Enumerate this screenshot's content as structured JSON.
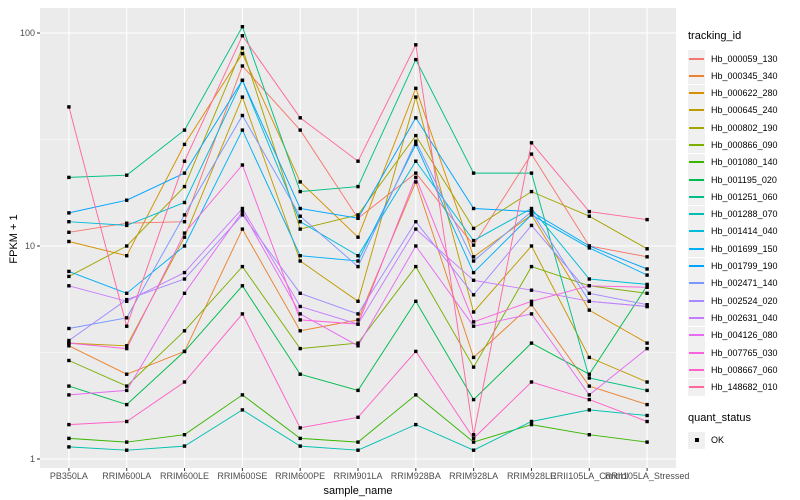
{
  "chart_data": {
    "type": "line",
    "title": "",
    "xlabel": "sample_name",
    "ylabel": "FPKM + 1",
    "y_scale": "log10",
    "y_ticks": [
      100,
      10,
      1
    ],
    "y_minor_gridlines": [
      31.62,
      3.162
    ],
    "ylim": [
      0.9,
      131
    ],
    "grid": "on",
    "legend_position": "right",
    "legend_title": "tracking_id",
    "marker": "filled-black-square",
    "colors": {
      "panel_bg": "#EBEBEB",
      "grid": "#FFFFFF",
      "tick_label": "#4D4D4D",
      "tick_mark": "#333333",
      "axis_title": "#000000",
      "point": "#000000",
      "legend_key_bg": "#F0F0F0"
    },
    "categories": [
      "PB350LA",
      "RRIM600LA",
      "RRIM600LE",
      "RRIM600SE",
      "RRIM600PE",
      "RRIM901LA",
      "RRIM928BA",
      "RRIM928LA",
      "RRIM928LE",
      "RRII105LA_Control",
      "RRII105LA_Stressed"
    ],
    "series": [
      {
        "name": "Hb_000059_130",
        "color": "#F8766D",
        "values": [
          11.6,
          12.8,
          13,
          70,
          35,
          13.5,
          22,
          10.1,
          27,
          10,
          8.9
        ]
      },
      {
        "name": "Hb_000345_340",
        "color": "#EA8331",
        "values": [
          3.4,
          2.5,
          3.2,
          12,
          4,
          4.5,
          20,
          3.0,
          5.3,
          2.2,
          1.8
        ]
      },
      {
        "name": "Hb_000622_280",
        "color": "#D89000",
        "values": [
          10.5,
          9,
          30,
          80,
          20,
          11,
          55,
          8.9,
          14,
          5,
          3.5
        ]
      },
      {
        "name": "Hb_000645_240",
        "color": "#C09B00",
        "values": [
          3.5,
          3.4,
          11,
          50,
          8.5,
          5.5,
          50,
          4.9,
          10,
          3,
          2.3
        ]
      },
      {
        "name": "Hb_000802_190",
        "color": "#A3A500",
        "values": [
          7.2,
          10,
          19,
          85,
          12,
          14,
          33,
          12.1,
          18,
          13.8,
          9.7
        ]
      },
      {
        "name": "Hb_000866_090",
        "color": "#7CAE00",
        "values": [
          2.9,
          2.2,
          4,
          8,
          3.3,
          3.5,
          8,
          2.7,
          8,
          6.5,
          6
        ]
      },
      {
        "name": "Hb_001080_140",
        "color": "#39B600",
        "values": [
          1.25,
          1.2,
          1.3,
          2,
          1.25,
          1.2,
          2,
          1.2,
          1.45,
          1.3,
          1.2
        ]
      },
      {
        "name": "Hb_001195_020",
        "color": "#00BB4E",
        "values": [
          2.2,
          1.8,
          3.2,
          6.5,
          2.5,
          2.1,
          5.5,
          1.9,
          3.5,
          2.5,
          6.5
        ]
      },
      {
        "name": "Hb_001251_060",
        "color": "#00C087",
        "values": [
          21,
          21.5,
          35,
          107,
          18,
          19,
          75,
          22,
          22,
          2.4,
          2.1
        ]
      },
      {
        "name": "Hb_001288_070",
        "color": "#00C0AF",
        "values": [
          1.14,
          1.1,
          1.15,
          1.7,
          1.15,
          1.1,
          1.45,
          1.1,
          1.5,
          1.7,
          1.6
        ]
      },
      {
        "name": "Hb_001414_040",
        "color": "#00BCD8",
        "values": [
          13,
          12.5,
          16,
          60,
          13,
          9,
          25,
          10.6,
          15,
          7,
          6.6
        ]
      },
      {
        "name": "Hb_001699_150",
        "color": "#00B0F6",
        "values": [
          7.6,
          6,
          10,
          35,
          9,
          8.5,
          30,
          7.5,
          14,
          9.8,
          7.3
        ]
      },
      {
        "name": "Hb_001799_190",
        "color": "#00A5FF",
        "values": [
          14.3,
          16.4,
          22,
          60,
          15,
          13.5,
          40,
          15,
          14.5,
          10,
          7.8
        ]
      },
      {
        "name": "Hb_002471_140",
        "color": "#7997FF",
        "values": [
          4.1,
          4.6,
          14,
          41,
          13.8,
          8,
          31,
          8.5,
          14.5,
          5.5,
          5.2
        ]
      },
      {
        "name": "Hb_002524_020",
        "color": "#A58AFF",
        "values": [
          3.6,
          5.6,
          7,
          14,
          6,
          4.8,
          13,
          5.9,
          12.5,
          6,
          5.3
        ]
      },
      {
        "name": "Hb_002631_040",
        "color": "#C77CFF",
        "values": [
          6.5,
          5.5,
          7.5,
          15,
          5.2,
          4.3,
          12,
          6.9,
          6.2,
          5.5,
          5.2
        ]
      },
      {
        "name": "Hb_004126_080",
        "color": "#E76BF3",
        "values": [
          2.0,
          2.1,
          6,
          14.5,
          4.8,
          3.4,
          10,
          4.2,
          4.8,
          2.0,
          3.3
        ]
      },
      {
        "name": "Hb_007765_030",
        "color": "#FA62DB",
        "values": [
          3.5,
          3.3,
          11.5,
          24,
          4.5,
          4.3,
          21,
          4.4,
          5.5,
          6.5,
          6.4
        ]
      },
      {
        "name": "Hb_008667_060",
        "color": "#FF61C7",
        "values": [
          1.45,
          1.5,
          2.3,
          4.8,
          1.4,
          1.57,
          3.2,
          1.25,
          2.3,
          1.9,
          1.5
        ]
      },
      {
        "name": "Hb_148682_010",
        "color": "#FF689E",
        "values": [
          45,
          4.2,
          25,
          97,
          40,
          25,
          88,
          1.3,
          30.5,
          14.5,
          13.3
        ]
      }
    ],
    "quant_status": {
      "title": "quant_status",
      "items": [
        {
          "label": "OK",
          "marker": "black-square"
        }
      ]
    }
  }
}
